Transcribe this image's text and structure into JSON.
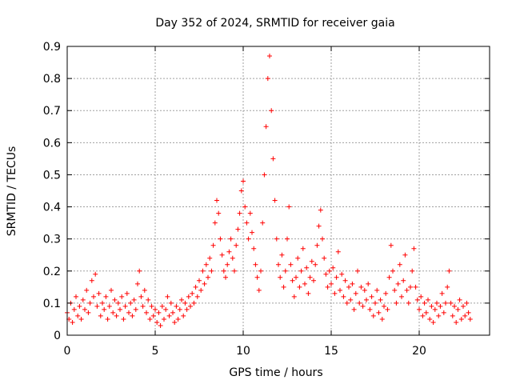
{
  "chart_data": {
    "type": "scatter",
    "title": "Day 352 of 2024, SRMTID for receiver gaia",
    "xlabel": "GPS time / hours",
    "ylabel": "SRMTID / TECUs",
    "xlim": [
      0,
      24
    ],
    "ylim": [
      0,
      0.9
    ],
    "xticks": [
      0,
      5,
      10,
      15,
      20
    ],
    "xtick_labels": [
      "0",
      "5",
      "10",
      "15",
      "20"
    ],
    "yticks": [
      0,
      0.1,
      0.2,
      0.3,
      0.4,
      0.5,
      0.6,
      0.7,
      0.8,
      0.9
    ],
    "ytick_labels": [
      "0",
      "0.1",
      "0.2",
      "0.3",
      "0.4",
      "0.5",
      "0.6",
      "0.7",
      "0.8",
      "0.9"
    ],
    "grid": true,
    "marker": "+",
    "color": "#ff0000",
    "series": [
      {
        "name": "SRMTID",
        "points": [
          [
            0.0,
            0.07
          ],
          [
            0.1,
            0.05
          ],
          [
            0.2,
            0.1
          ],
          [
            0.3,
            0.04
          ],
          [
            0.4,
            0.08
          ],
          [
            0.5,
            0.12
          ],
          [
            0.6,
            0.06
          ],
          [
            0.7,
            0.09
          ],
          [
            0.8,
            0.05
          ],
          [
            0.9,
            0.11
          ],
          [
            1.0,
            0.08
          ],
          [
            1.1,
            0.14
          ],
          [
            1.2,
            0.07
          ],
          [
            1.3,
            0.1
          ],
          [
            1.4,
            0.17
          ],
          [
            1.5,
            0.12
          ],
          [
            1.6,
            0.19
          ],
          [
            1.7,
            0.09
          ],
          [
            1.8,
            0.13
          ],
          [
            1.9,
            0.06
          ],
          [
            2.0,
            0.1
          ],
          [
            2.1,
            0.08
          ],
          [
            2.2,
            0.12
          ],
          [
            2.3,
            0.05
          ],
          [
            2.4,
            0.09
          ],
          [
            2.5,
            0.14
          ],
          [
            2.6,
            0.07
          ],
          [
            2.7,
            0.11
          ],
          [
            2.8,
            0.06
          ],
          [
            2.9,
            0.1
          ],
          [
            3.0,
            0.08
          ],
          [
            3.1,
            0.12
          ],
          [
            3.2,
            0.05
          ],
          [
            3.3,
            0.09
          ],
          [
            3.4,
            0.13
          ],
          [
            3.5,
            0.07
          ],
          [
            3.6,
            0.1
          ],
          [
            3.7,
            0.06
          ],
          [
            3.8,
            0.11
          ],
          [
            3.9,
            0.08
          ],
          [
            4.0,
            0.16
          ],
          [
            4.1,
            0.2
          ],
          [
            4.2,
            0.12
          ],
          [
            4.3,
            0.09
          ],
          [
            4.4,
            0.14
          ],
          [
            4.5,
            0.07
          ],
          [
            4.6,
            0.11
          ],
          [
            4.7,
            0.05
          ],
          [
            4.8,
            0.09
          ],
          [
            4.9,
            0.06
          ],
          [
            5.0,
            0.08
          ],
          [
            5.1,
            0.04
          ],
          [
            5.2,
            0.07
          ],
          [
            5.3,
            0.03
          ],
          [
            5.4,
            0.09
          ],
          [
            5.5,
            0.05
          ],
          [
            5.6,
            0.08
          ],
          [
            5.7,
            0.12
          ],
          [
            5.8,
            0.06
          ],
          [
            5.9,
            0.1
          ],
          [
            6.0,
            0.07
          ],
          [
            6.1,
            0.04
          ],
          [
            6.2,
            0.09
          ],
          [
            6.3,
            0.05
          ],
          [
            6.4,
            0.08
          ],
          [
            6.5,
            0.11
          ],
          [
            6.6,
            0.06
          ],
          [
            6.7,
            0.1
          ],
          [
            6.8,
            0.08
          ],
          [
            6.9,
            0.12
          ],
          [
            7.0,
            0.09
          ],
          [
            7.1,
            0.13
          ],
          [
            7.2,
            0.1
          ],
          [
            7.3,
            0.15
          ],
          [
            7.4,
            0.12
          ],
          [
            7.5,
            0.17
          ],
          [
            7.6,
            0.14
          ],
          [
            7.7,
            0.2
          ],
          [
            7.8,
            0.16
          ],
          [
            7.9,
            0.22
          ],
          [
            8.0,
            0.18
          ],
          [
            8.1,
            0.24
          ],
          [
            8.2,
            0.2
          ],
          [
            8.3,
            0.28
          ],
          [
            8.4,
            0.35
          ],
          [
            8.5,
            0.42
          ],
          [
            8.6,
            0.38
          ],
          [
            8.7,
            0.3
          ],
          [
            8.8,
            0.25
          ],
          [
            8.9,
            0.2
          ],
          [
            9.0,
            0.18
          ],
          [
            9.1,
            0.22
          ],
          [
            9.2,
            0.26
          ],
          [
            9.3,
            0.3
          ],
          [
            9.4,
            0.24
          ],
          [
            9.5,
            0.2
          ],
          [
            9.6,
            0.28
          ],
          [
            9.7,
            0.33
          ],
          [
            9.8,
            0.38
          ],
          [
            9.9,
            0.45
          ],
          [
            10.0,
            0.48
          ],
          [
            10.1,
            0.4
          ],
          [
            10.2,
            0.35
          ],
          [
            10.3,
            0.3
          ],
          [
            10.4,
            0.38
          ],
          [
            10.5,
            0.32
          ],
          [
            10.6,
            0.27
          ],
          [
            10.7,
            0.22
          ],
          [
            10.8,
            0.18
          ],
          [
            10.9,
            0.14
          ],
          [
            11.0,
            0.2
          ],
          [
            11.1,
            0.35
          ],
          [
            11.2,
            0.5
          ],
          [
            11.3,
            0.65
          ],
          [
            11.4,
            0.8
          ],
          [
            11.5,
            0.87
          ],
          [
            11.6,
            0.7
          ],
          [
            11.7,
            0.55
          ],
          [
            11.8,
            0.42
          ],
          [
            11.9,
            0.3
          ],
          [
            12.0,
            0.22
          ],
          [
            12.1,
            0.18
          ],
          [
            12.2,
            0.25
          ],
          [
            12.3,
            0.15
          ],
          [
            12.4,
            0.2
          ],
          [
            12.5,
            0.3
          ],
          [
            12.6,
            0.4
          ],
          [
            12.7,
            0.22
          ],
          [
            12.8,
            0.17
          ],
          [
            12.9,
            0.12
          ],
          [
            13.0,
            0.18
          ],
          [
            13.1,
            0.24
          ],
          [
            13.2,
            0.15
          ],
          [
            13.3,
            0.2
          ],
          [
            13.4,
            0.27
          ],
          [
            13.5,
            0.16
          ],
          [
            13.6,
            0.21
          ],
          [
            13.7,
            0.13
          ],
          [
            13.8,
            0.18
          ],
          [
            13.9,
            0.23
          ],
          [
            14.0,
            0.17
          ],
          [
            14.1,
            0.22
          ],
          [
            14.2,
            0.28
          ],
          [
            14.3,
            0.34
          ],
          [
            14.4,
            0.39
          ],
          [
            14.5,
            0.3
          ],
          [
            14.6,
            0.24
          ],
          [
            14.7,
            0.19
          ],
          [
            14.8,
            0.15
          ],
          [
            14.9,
            0.2
          ],
          [
            15.0,
            0.16
          ],
          [
            15.1,
            0.21
          ],
          [
            15.2,
            0.13
          ],
          [
            15.3,
            0.18
          ],
          [
            15.4,
            0.26
          ],
          [
            15.5,
            0.14
          ],
          [
            15.6,
            0.19
          ],
          [
            15.7,
            0.12
          ],
          [
            15.8,
            0.17
          ],
          [
            15.9,
            0.1
          ],
          [
            16.0,
            0.15
          ],
          [
            16.1,
            0.11
          ],
          [
            16.2,
            0.16
          ],
          [
            16.3,
            0.08
          ],
          [
            16.4,
            0.13
          ],
          [
            16.5,
            0.2
          ],
          [
            16.6,
            0.1
          ],
          [
            16.7,
            0.15
          ],
          [
            16.8,
            0.09
          ],
          [
            16.9,
            0.14
          ],
          [
            17.0,
            0.11
          ],
          [
            17.1,
            0.16
          ],
          [
            17.2,
            0.08
          ],
          [
            17.3,
            0.12
          ],
          [
            17.4,
            0.06
          ],
          [
            17.5,
            0.1
          ],
          [
            17.6,
            0.14
          ],
          [
            17.7,
            0.07
          ],
          [
            17.8,
            0.11
          ],
          [
            17.9,
            0.05
          ],
          [
            18.0,
            0.09
          ],
          [
            18.1,
            0.13
          ],
          [
            18.2,
            0.08
          ],
          [
            18.3,
            0.18
          ],
          [
            18.4,
            0.28
          ],
          [
            18.5,
            0.2
          ],
          [
            18.6,
            0.14
          ],
          [
            18.7,
            0.1
          ],
          [
            18.8,
            0.16
          ],
          [
            18.9,
            0.22
          ],
          [
            19.0,
            0.12
          ],
          [
            19.1,
            0.17
          ],
          [
            19.2,
            0.25
          ],
          [
            19.3,
            0.14
          ],
          [
            19.4,
            0.1
          ],
          [
            19.5,
            0.15
          ],
          [
            19.6,
            0.2
          ],
          [
            19.7,
            0.27
          ],
          [
            19.8,
            0.15
          ],
          [
            19.9,
            0.11
          ],
          [
            20.0,
            0.08
          ],
          [
            20.1,
            0.12
          ],
          [
            20.2,
            0.06
          ],
          [
            20.3,
            0.1
          ],
          [
            20.4,
            0.07
          ],
          [
            20.5,
            0.11
          ],
          [
            20.6,
            0.05
          ],
          [
            20.7,
            0.09
          ],
          [
            20.8,
            0.04
          ],
          [
            20.9,
            0.08
          ],
          [
            21.0,
            0.1
          ],
          [
            21.1,
            0.06
          ],
          [
            21.2,
            0.09
          ],
          [
            21.3,
            0.13
          ],
          [
            21.4,
            0.07
          ],
          [
            21.5,
            0.1
          ],
          [
            21.6,
            0.15
          ],
          [
            21.7,
            0.2
          ],
          [
            21.8,
            0.1
          ],
          [
            21.9,
            0.06
          ],
          [
            22.0,
            0.09
          ],
          [
            22.1,
            0.04
          ],
          [
            22.2,
            0.08
          ],
          [
            22.3,
            0.11
          ],
          [
            22.4,
            0.05
          ],
          [
            22.5,
            0.09
          ],
          [
            22.6,
            0.06
          ],
          [
            22.7,
            0.1
          ],
          [
            22.8,
            0.07
          ],
          [
            22.9,
            0.05
          ]
        ]
      }
    ]
  }
}
